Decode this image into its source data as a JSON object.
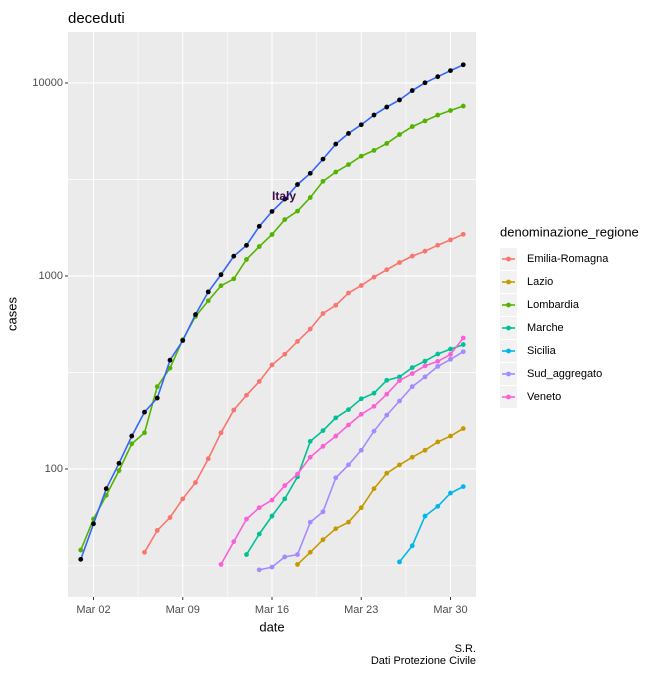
{
  "chart_data": {
    "type": "line",
    "title": "deceduti",
    "x_label": "date",
    "y_label": "cases",
    "legend_title": "denominazione_regione",
    "caption": [
      "S.R.",
      "Dati Protezione Civile"
    ],
    "log_y": true,
    "grid": true,
    "legend": "right",
    "x": [
      "Mar 01",
      "Mar 02",
      "Mar 03",
      "Mar 04",
      "Mar 05",
      "Mar 06",
      "Mar 07",
      "Mar 08",
      "Mar 09",
      "Mar 10",
      "Mar 11",
      "Mar 12",
      "Mar 13",
      "Mar 14",
      "Mar 15",
      "Mar 16",
      "Mar 17",
      "Mar 18",
      "Mar 19",
      "Mar 20",
      "Mar 21",
      "Mar 22",
      "Mar 23",
      "Mar 24",
      "Mar 25",
      "Mar 26",
      "Mar 27",
      "Mar 28",
      "Mar 29",
      "Mar 30",
      "Mar 31"
    ],
    "xlim": [
      "Feb 29",
      "Apr 01"
    ],
    "xticks": [
      "Mar 02",
      "Mar 09",
      "Mar 16",
      "Mar 23",
      "Mar 30"
    ],
    "ylim": [
      21.7,
      18370
    ],
    "yticks": [
      100,
      1000,
      10000
    ],
    "italy": {
      "label": "Italy",
      "color": "#000000",
      "line_color": "#3366ff",
      "values": [
        34,
        52,
        79,
        107,
        148,
        197,
        233,
        366,
        463,
        631,
        827,
        1016,
        1266,
        1441,
        1809,
        2158,
        2503,
        2978,
        3405,
        4032,
        4825,
        5476,
        6077,
        6820,
        7503,
        8165,
        9134,
        10023,
        10779,
        11591,
        12428
      ]
    },
    "series": [
      {
        "name": "Emilia-Romagna",
        "color": "#F8766D",
        "values": [
          null,
          null,
          null,
          null,
          null,
          37,
          48,
          56,
          70,
          85,
          113,
          154,
          202,
          241,
          284,
          346,
          393,
          458,
          531,
          639,
          705,
          816,
          892,
          986,
          1077,
          1174,
          1267,
          1344,
          1443,
          1538,
          1644
        ]
      },
      {
        "name": "Lazio",
        "color": "#C49A00",
        "values": [
          null,
          null,
          null,
          null,
          null,
          null,
          null,
          null,
          null,
          null,
          null,
          null,
          null,
          null,
          null,
          null,
          null,
          32,
          37,
          43,
          49,
          53,
          63,
          79,
          95,
          105,
          115,
          125,
          138,
          148,
          162
        ]
      },
      {
        "name": "Lombardia",
        "color": "#53B400",
        "values": [
          38,
          55,
          73,
          98,
          135,
          154,
          267,
          333,
          468,
          617,
          744,
          890,
          966,
          1218,
          1420,
          1640,
          1959,
          2168,
          2549,
          3095,
          3456,
          3776,
          4178,
          4474,
          4861,
          5402,
          5944,
          6360,
          6818,
          7199,
          7593
        ]
      },
      {
        "name": "Marche",
        "color": "#00C094",
        "values": [
          null,
          null,
          null,
          null,
          null,
          null,
          null,
          null,
          null,
          null,
          null,
          null,
          null,
          36,
          46,
          57,
          70,
          91,
          139,
          158,
          184,
          203,
          231,
          247,
          288,
          300,
          335,
          362,
          394,
          418,
          441
        ]
      },
      {
        "name": "Sicilia",
        "color": "#00B6EB",
        "values": [
          null,
          null,
          null,
          null,
          null,
          null,
          null,
          null,
          null,
          null,
          null,
          null,
          null,
          null,
          null,
          null,
          null,
          null,
          null,
          null,
          null,
          null,
          null,
          null,
          null,
          33,
          40,
          57,
          64,
          75,
          81
        ]
      },
      {
        "name": "Sud_aggregato",
        "color": "#A58AFF",
        "values": [
          null,
          null,
          null,
          null,
          null,
          null,
          null,
          null,
          null,
          null,
          null,
          null,
          null,
          null,
          30,
          31,
          35,
          36,
          53,
          60,
          90,
          105,
          125,
          157,
          190,
          225,
          267,
          300,
          340,
          370,
          405
        ]
      },
      {
        "name": "Veneto",
        "color": "#FB61D7",
        "values": [
          null,
          null,
          null,
          null,
          null,
          null,
          null,
          null,
          null,
          null,
          null,
          32,
          42,
          55,
          63,
          69,
          82,
          94,
          115,
          131,
          148,
          169,
          192,
          211,
          244,
          287,
          312,
          342,
          361,
          392,
          477
        ]
      }
    ]
  }
}
